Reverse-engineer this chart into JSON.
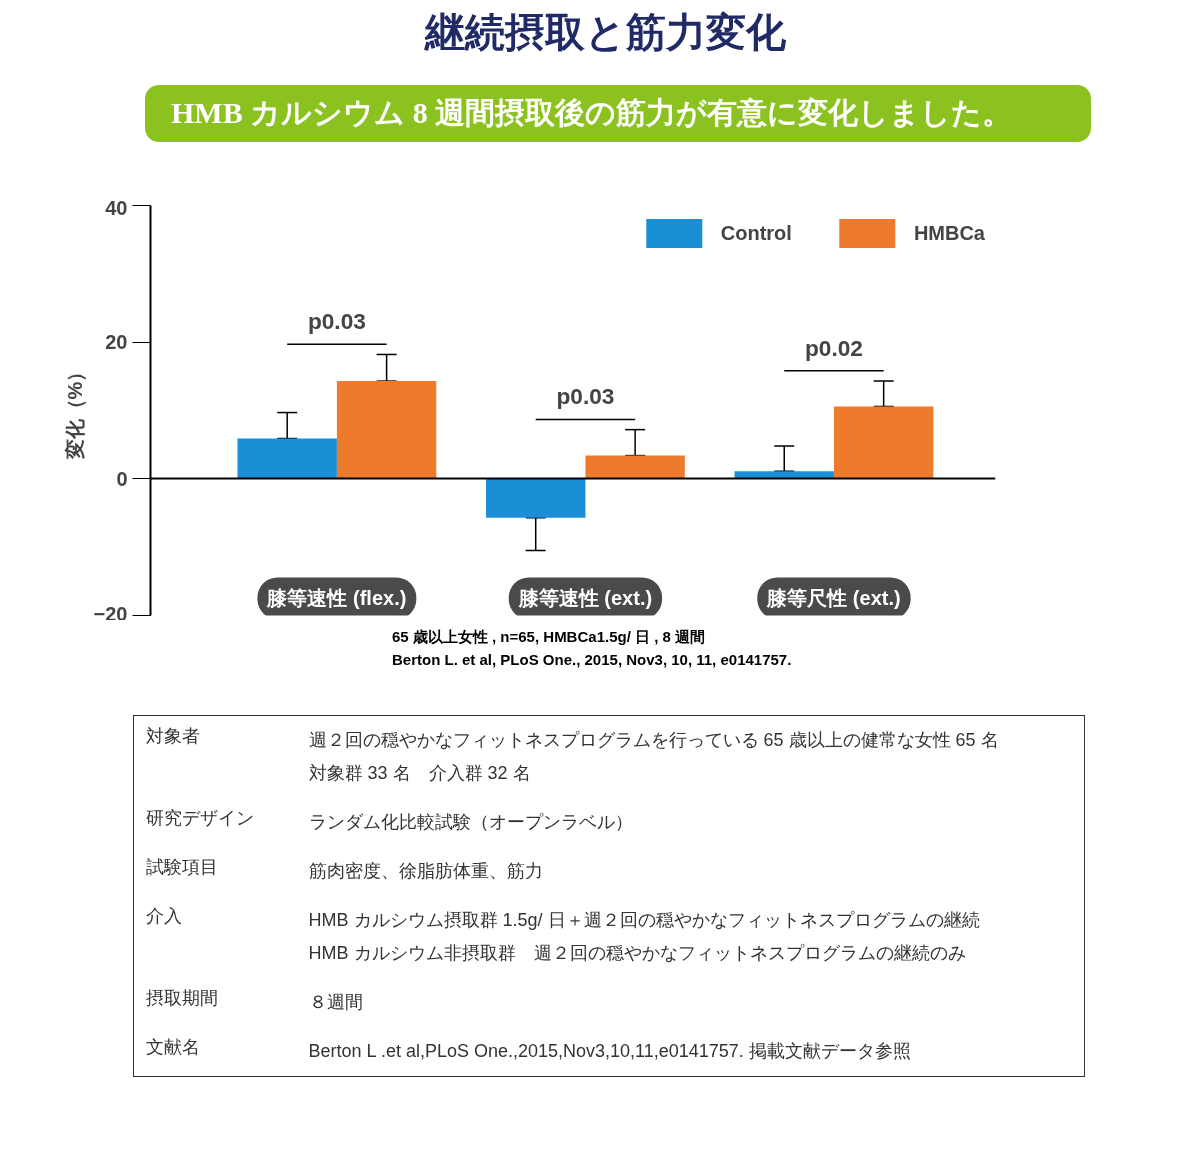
{
  "chart_data": {
    "type": "bar",
    "title": "継続摂取と筋力変化",
    "subtitle": "HMB カルシウム 8 週間摂取後の筋力が有意に変化しました。",
    "ylabel": "変化（%）",
    "categories": [
      "膝等速性 (flex.)",
      "膝等速性 (ext.)",
      "膝等尺性 (ext.)"
    ],
    "series": [
      {
        "name": "Control",
        "color": "#1a8fd6",
        "values": [
          5.9,
          -5.7,
          1.1
        ],
        "errors": [
          3.8,
          4.8,
          3.7
        ]
      },
      {
        "name": "HMBCa",
        "color": "#ee7a2c",
        "values": [
          14.3,
          3.4,
          10.6
        ],
        "errors": [
          3.9,
          3.8,
          3.7
        ]
      }
    ],
    "ylim": [
      -20,
      40
    ],
    "yticks": [
      -20,
      0,
      20,
      40
    ],
    "legend": "top right",
    "annotations": [
      "p0.03",
      "p0.03",
      "p0.02",
      "65 歳以上女性 , n=65, HMBCa1.5g/ 日 , 8 週間",
      "Berton L. et al, PLoS One., 2015, Nov3, 10, 11, e0141757.",
      "対象者",
      "週２回の穏やかなフィットネスプログラムを行っている 65 歳以上の健常な女性 65 名",
      "対象群 33 名　介入群 32 名",
      "研究デザイン",
      "ランダム化比較試験（オープンラベル）",
      "試験項目",
      "筋肉密度、徐脂肪体重、筋力",
      "介入",
      "HMB カルシウム摂取群 1.5g/ 日＋週２回の穏やかなフィットネスプログラムの継続",
      "HMB カルシウム非摂取群　週２回の穏やかなフィットネスプログラムの継続のみ",
      "摂取期間",
      "８週間",
      "文献名",
      "Berton L .et al,PLoS One.,2015,Nov3,10,11,e0141757. 掲載文献データ参照"
    ]
  }
}
